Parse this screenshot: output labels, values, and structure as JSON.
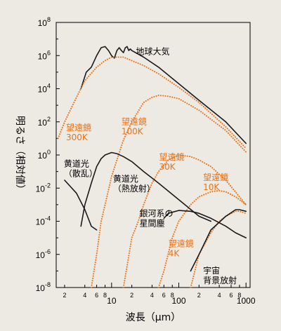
{
  "chart_data": {
    "type": "line",
    "xlabel": "波長（μm）",
    "ylabel": "明るさ（相対値）",
    "xscale": "log",
    "yscale": "log",
    "xlim": [
      1.5,
      1150
    ],
    "ylim": [
      1e-08,
      100000000.0
    ],
    "x_ticks": [
      {
        "value": 10,
        "label": "10"
      },
      {
        "value": 100,
        "label": "100"
      },
      {
        "value": 1000,
        "label": "1000"
      }
    ],
    "x_minor_ticks": [
      {
        "value": 2,
        "label": "2"
      },
      {
        "value": 4,
        "label": "4"
      },
      {
        "value": 6,
        "label": "6"
      },
      {
        "value": 8,
        "label": "8"
      },
      {
        "value": 20,
        "label": "2"
      },
      {
        "value": 40,
        "label": "4"
      },
      {
        "value": 60,
        "label": "6"
      },
      {
        "value": 80,
        "label": "8"
      },
      {
        "value": 200,
        "label": "2"
      },
      {
        "value": 400,
        "label": "4"
      },
      {
        "value": 600,
        "label": "6"
      },
      {
        "value": 800,
        "label": "8"
      }
    ],
    "y_ticks": [
      {
        "value": 100000000.0,
        "base": "10",
        "exp": "8"
      },
      {
        "value": 1000000.0,
        "base": "10",
        "exp": "6"
      },
      {
        "value": 10000.0,
        "base": "10",
        "exp": "4"
      },
      {
        "value": 100.0,
        "base": "10",
        "exp": "2"
      },
      {
        "value": 1,
        "base": "10",
        "exp": "0"
      },
      {
        "value": 0.01,
        "base": "10",
        "exp": "-2"
      },
      {
        "value": 0.0001,
        "base": "10",
        "exp": "-4"
      },
      {
        "value": 1e-06,
        "base": "10",
        "exp": "-6"
      },
      {
        "value": 1e-08,
        "base": "10",
        "exp": "-8"
      }
    ],
    "series": [
      {
        "name": "地球大気",
        "style": "solid",
        "color": "#1a1a1a",
        "x": [
          3.5,
          4.2,
          5,
          6,
          7,
          8,
          9,
          10,
          11,
          12,
          13,
          14,
          15,
          16,
          17,
          18,
          19,
          20,
          30,
          50,
          100,
          200,
          500,
          1000
        ],
        "y": [
          10000.0,
          100000.0,
          200000.0,
          1000000.0,
          3000000.0,
          3500000.0,
          2000000.0,
          1000000.0,
          700000.0,
          2000000.0,
          3000000.0,
          2000000.0,
          1500000.0,
          3000000.0,
          3500000.0,
          2000000.0,
          2500000.0,
          2000000.0,
          800000.0,
          200000.0,
          20000.0,
          2000.0,
          100.0,
          5
        ]
      },
      {
        "name": "望遠鏡 300K",
        "style": "dotted",
        "color": "#e8731a",
        "x": [
          1.6,
          2,
          3,
          4,
          6,
          8,
          10,
          15,
          20,
          30,
          50,
          100,
          200,
          500,
          1000
        ],
        "y": [
          10,
          100,
          3000.0,
          30000.0,
          200000.0,
          500000.0,
          800000.0,
          800000.0,
          500000.0,
          250000.0,
          80000.0,
          12000.0,
          1500.0,
          50,
          2.5
        ]
      },
      {
        "name": "望遠鏡 100K",
        "style": "dotted",
        "color": "#e8731a",
        "x": [
          5,
          6,
          7,
          8,
          10,
          15,
          20,
          30,
          40,
          50,
          70,
          100,
          200,
          500,
          1000
        ],
        "y": [
          1e-08,
          1e-06,
          0.0001,
          0.001,
          0.05,
          8,
          100,
          1500.0,
          3000.0,
          4000.0,
          3500.0,
          2500.0,
          500,
          30,
          1.5
        ]
      },
      {
        "name": "望遠鏡 30K",
        "style": "dotted",
        "color": "#e8731a",
        "x": [
          15,
          20,
          25,
          30,
          40,
          50,
          70,
          100,
          150,
          200,
          300,
          500,
          1000
        ],
        "y": [
          1e-08,
          1e-05,
          0.0001,
          0.001,
          0.02,
          0.1,
          0.5,
          1,
          0.8,
          0.5,
          0.2,
          0.03,
          0.001
        ]
      },
      {
        "name": "望遠鏡 10K",
        "style": "dotted",
        "color": "#e8731a",
        "x": [
          50,
          60,
          80,
          100,
          150,
          200,
          300,
          400,
          500,
          700,
          1000
        ],
        "y": [
          1e-08,
          1e-07,
          1e-05,
          0.0001,
          0.001,
          0.003,
          0.006,
          0.007,
          0.006,
          0.003,
          0.001
        ]
      },
      {
        "name": "望遠鏡 4K",
        "style": "dotted",
        "color": "#e8731a",
        "x": [
          150,
          200,
          300,
          400,
          500,
          700,
          800,
          1000
        ],
        "y": [
          1e-08,
          1e-06,
          2e-05,
          0.0001,
          0.0002,
          0.0004,
          0.0004,
          0.0003
        ]
      },
      {
        "name": "黄道光（散乱）",
        "style": "solid",
        "color": "#1a1a1a",
        "x": [
          2,
          3,
          4,
          5,
          6
        ],
        "y": [
          0.03,
          0.005,
          0.0005,
          5e-05,
          3e-05
        ]
      },
      {
        "name": "黄道光（熱放射）",
        "style": "solid",
        "color": "#1a1a1a",
        "x": [
          3.5,
          4,
          5,
          6,
          7,
          8,
          10,
          12,
          15,
          20,
          30,
          50,
          100,
          200,
          300
        ],
        "y": [
          5e-05,
          0.001,
          0.02,
          0.2,
          0.6,
          1,
          1.4,
          1.2,
          0.8,
          0.4,
          0.1,
          0.02,
          0.002,
          0.0002,
          0.0001
        ]
      },
      {
        "name": "銀河系の星間塵",
        "style": "solid",
        "color": "#1a1a1a",
        "x": [
          60,
          70,
          100,
          150,
          200,
          300,
          500,
          700,
          1000
        ],
        "y": [
          0.00015,
          0.0003,
          0.00045,
          0.0004,
          0.0003,
          0.00015,
          5e-05,
          2e-05,
          1e-05
        ]
      },
      {
        "name": "宇宙背景放射",
        "style": "solid",
        "color": "#1a1a1a",
        "x": [
          150,
          200,
          300,
          500,
          700,
          800,
          1000
        ],
        "y": [
          1e-07,
          1e-06,
          3e-05,
          0.0002,
          0.0005,
          0.0005,
          0.0004
        ]
      }
    ],
    "annotations": [
      {
        "text_lines": [
          "地球大気"
        ],
        "color": "#000000",
        "at": [
          23,
          1200000.0
        ]
      },
      {
        "text_lines": [
          "望遠鏡",
          "300K"
        ],
        "color": "#e8731a",
        "at": [
          2.1,
          30
        ]
      },
      {
        "text_lines": [
          "望遠鏡",
          "100K"
        ],
        "color": "#e8731a",
        "at": [
          14,
          70
        ]
      },
      {
        "text_lines": [
          "望遠鏡",
          "30K"
        ],
        "color": "#e8731a",
        "at": [
          51,
          0.5
        ]
      },
      {
        "text_lines": [
          "黄道光",
          "（散乱）"
        ],
        "color": "#000000",
        "at": [
          1.95,
          0.2
        ]
      },
      {
        "text_lines": [
          "黄道光",
          "（熱放射）"
        ],
        "color": "#000000",
        "at": [
          10.5,
          0.025
        ]
      },
      {
        "text_lines": [
          "望遠鏡",
          "10K"
        ],
        "color": "#e8731a",
        "at": [
          230,
          0.03
        ]
      },
      {
        "text_lines": [
          "銀河系の",
          "星間塵"
        ],
        "color": "#000000",
        "at": [
          26,
          0.0002
        ]
      },
      {
        "text_lines": [
          "望遠鏡",
          "4K"
        ],
        "color": "#e8731a",
        "at": [
          70,
          3e-06
        ]
      },
      {
        "text_lines": [
          "宇宙",
          "背景放射"
        ],
        "color": "#000000",
        "at": [
          230,
          7e-08
        ]
      }
    ],
    "grid": false,
    "legend": "none"
  }
}
